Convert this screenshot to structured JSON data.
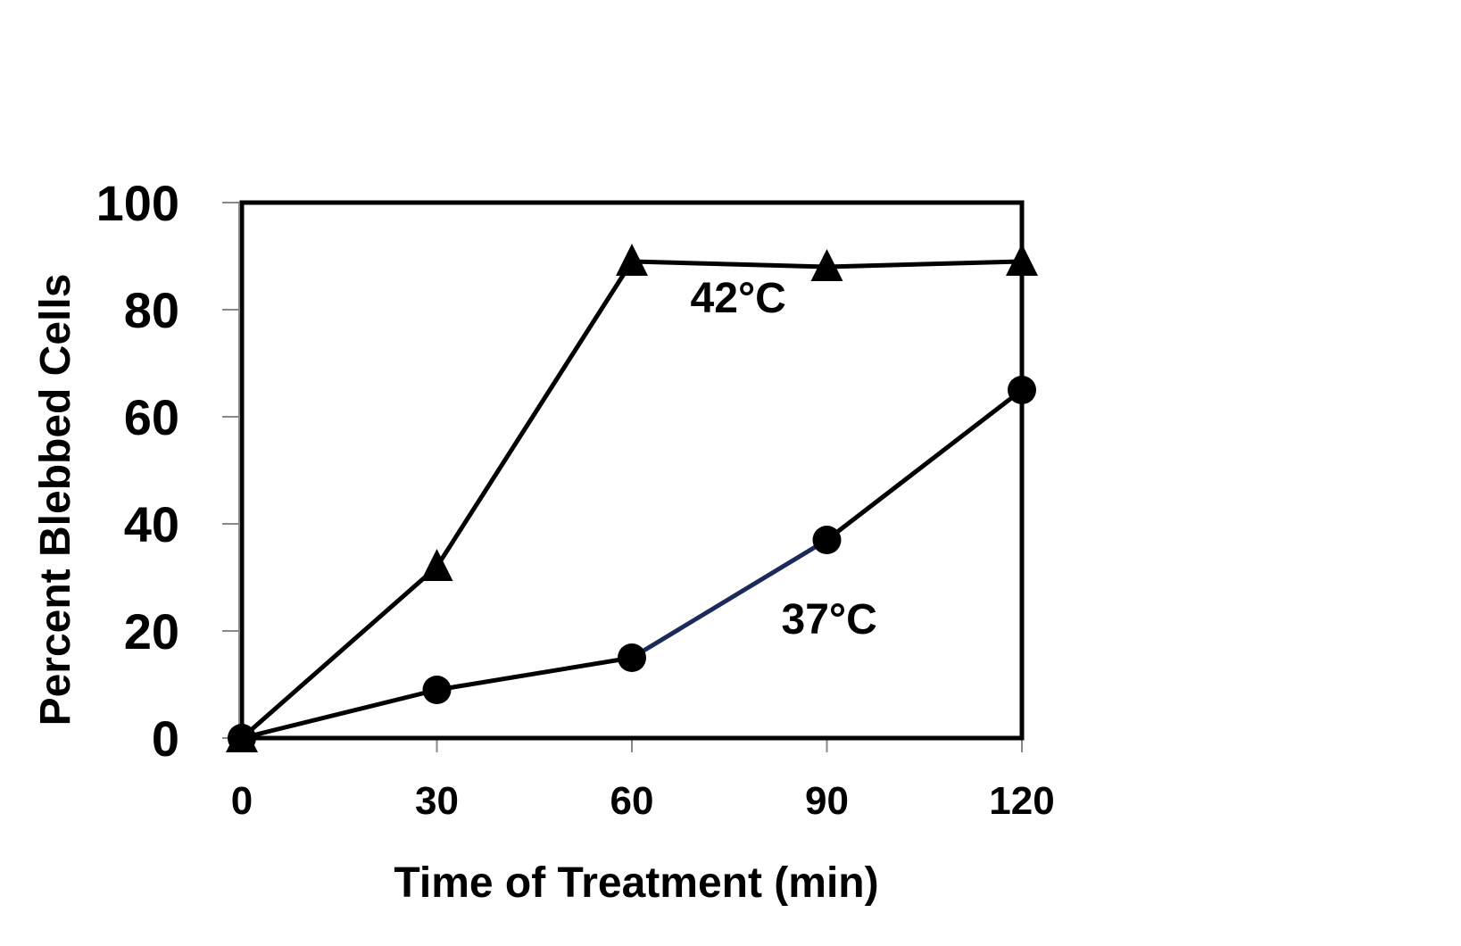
{
  "chart_data": {
    "type": "line",
    "xlabel": "Time of Treatment (min)",
    "ylabel": "Percent Blebbed Cells",
    "x": [
      0,
      30,
      60,
      90,
      120
    ],
    "xlim": [
      0,
      120
    ],
    "ylim": [
      0,
      100
    ],
    "xticks": [
      "0",
      "30",
      "60",
      "90",
      "120"
    ],
    "yticks": [
      "0",
      "20",
      "40",
      "60",
      "80",
      "100"
    ],
    "grid": false,
    "series": [
      {
        "name": "42°C",
        "marker": "triangle",
        "values": [
          0,
          32,
          89,
          88,
          89
        ],
        "color": "#000000"
      },
      {
        "name": "37°C",
        "marker": "circle",
        "values": [
          0,
          9,
          15,
          37,
          65
        ],
        "color": "#000000",
        "segment_accent": "#1a2a5a"
      }
    ]
  }
}
